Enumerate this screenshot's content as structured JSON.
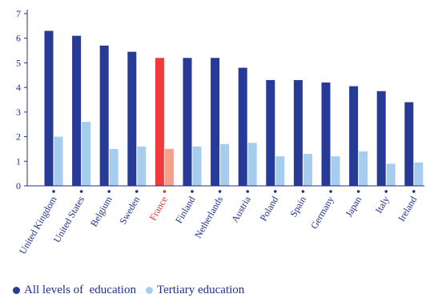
{
  "chart_data": {
    "type": "bar",
    "title": "",
    "xlabel": "",
    "ylabel": "",
    "ylim": [
      0,
      7
    ],
    "yticks": [
      0,
      1,
      2,
      3,
      4,
      5,
      6,
      7
    ],
    "grid": false,
    "legend_position": "bottom-left",
    "highlight_category": "France",
    "colors": {
      "all_levels": "#263a96",
      "tertiary": "#a7cdee",
      "highlight_all_levels": "#ef3b3b",
      "highlight_tertiary": "#f4a08a",
      "axis": "#1f2f8f",
      "highlight_label": "#e8312f"
    },
    "categories": [
      "United Kingdom",
      "United States",
      "Belgium",
      "Sweden",
      "France",
      "Finland",
      "Netherlands",
      "Austria",
      "Poland",
      "Spain",
      "Germany",
      "Japan",
      "Italy",
      "Ireland"
    ],
    "series": [
      {
        "name": "All levels of  education",
        "values": [
          6.3,
          6.1,
          5.7,
          5.45,
          5.2,
          5.2,
          5.2,
          4.8,
          4.3,
          4.3,
          4.2,
          4.05,
          3.85,
          3.4
        ]
      },
      {
        "name": "Tertiary education",
        "values": [
          2.0,
          2.6,
          1.5,
          1.6,
          1.5,
          1.6,
          1.7,
          1.75,
          1.2,
          1.3,
          1.2,
          1.4,
          0.9,
          0.95
        ]
      }
    ]
  }
}
